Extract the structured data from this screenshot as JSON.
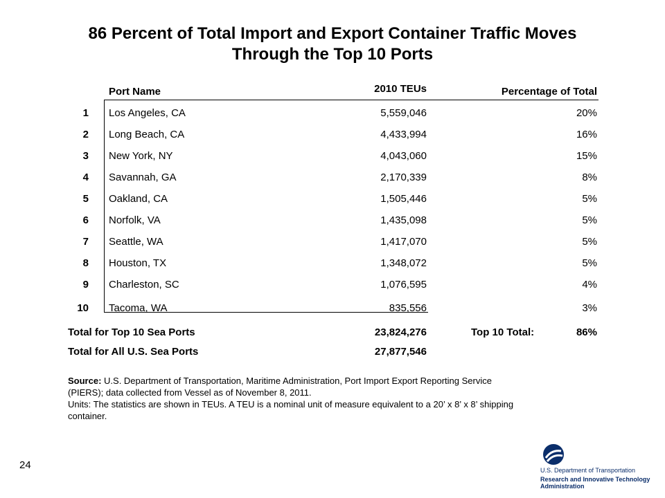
{
  "title_line1": "86 Percent of Total Import and Export Container Traffic Moves",
  "title_line2": "Through the Top 10 Ports",
  "table": {
    "headers": {
      "port": "Port Name",
      "teus": "2010 TEUs",
      "pct": "Percentage of Total"
    },
    "rows": [
      {
        "rank": "1",
        "port": "Los Angeles, CA",
        "teus": "5,559,046",
        "pct": "20%"
      },
      {
        "rank": "2",
        "port": "Long Beach, CA",
        "teus": "4,433,994",
        "pct": "16%"
      },
      {
        "rank": "3",
        "port": "New York, NY",
        "teus": "4,043,060",
        "pct": "15%"
      },
      {
        "rank": "4",
        "port": "Savannah, GA",
        "teus": "2,170,339",
        "pct": "8%"
      },
      {
        "rank": "5",
        "port": "Oakland, CA",
        "teus": "1,505,446",
        "pct": "5%"
      },
      {
        "rank": "6",
        "port": "Norfolk, VA",
        "teus": "1,435,098",
        "pct": "5%"
      },
      {
        "rank": "7",
        "port": "Seattle, WA",
        "teus": "1,417,070",
        "pct": "5%"
      },
      {
        "rank": "8",
        "port": "Houston, TX",
        "teus": "1,348,072",
        "pct": "5%"
      },
      {
        "rank": "9",
        "port": "Charleston, SC",
        "teus": "1,076,595",
        "pct": "4%"
      },
      {
        "rank": "10",
        "port": "Tacoma, WA",
        "teus": "835,556",
        "pct": "3%"
      }
    ]
  },
  "totals": {
    "top10_label": "Total for Top 10 Sea Ports",
    "top10_teus": "23,824,276",
    "top10_total_label": "Top 10 Total:",
    "top10_pct": "86%",
    "all_label": "Total for All U.S. Sea Ports",
    "all_teus": "27,877,546"
  },
  "source": {
    "label": "Source:",
    "text": " U.S. Department of Transportation, Maritime Administration, Port Import Export Reporting Service (PIERS); data collected from Vessel as of November 8, 2011.",
    "units": "Units: The statistics are shown in TEUs. A TEU is a nominal unit of measure equivalent to a 20’ x 8’ x 8’ shipping container."
  },
  "page_number": "24",
  "logo": {
    "line1": "U.S. Department of Transportation",
    "line2": "Research and Innovative Technology Administration",
    "color": "#0b2e6b"
  }
}
